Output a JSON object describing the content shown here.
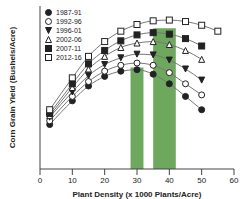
{
  "chart_data": {
    "type": "line",
    "xlabel": "Plant Density (x 1000 Plants/Acre)",
    "ylabel": "Corn Grain Yield (Bushels/Acre)",
    "x": [
      3,
      10,
      15,
      20,
      25,
      30,
      35,
      40,
      45,
      50,
      55
    ],
    "series": [
      {
        "name": "1987-91",
        "color": "#222222",
        "marker": "circle",
        "values": [
          60,
          92,
          112,
          125,
          132,
          134,
          128,
          115,
          98,
          80,
          null
        ]
      },
      {
        "name": "1992-96",
        "color": "#222222",
        "marker": "circle_open",
        "values": [
          65,
          98,
          118,
          132,
          140,
          143,
          140,
          130,
          115,
          100,
          null
        ]
      },
      {
        "name": "1996-01",
        "color": "#222222",
        "marker": "triangle_down",
        "values": [
          70,
          104,
          126,
          141,
          150,
          155,
          154,
          147,
          135,
          120,
          null
        ]
      },
      {
        "name": "2002-06",
        "color": "#222222",
        "marker": "triangle_open",
        "values": [
          72,
          110,
          135,
          152,
          164,
          170,
          172,
          168,
          160,
          148,
          null
        ]
      },
      {
        "name": "2007-11",
        "color": "#222222",
        "marker": "square",
        "values": [
          75,
          115,
          142,
          160,
          173,
          181,
          184,
          182,
          176,
          166,
          null
        ]
      },
      {
        "name": "2012-16",
        "color": "#222222",
        "marker": "square_open",
        "values": [
          80,
          123,
          152,
          172,
          186,
          195,
          200,
          201,
          199,
          194,
          186
        ]
      }
    ],
    "bands": [
      {
        "x0": 28,
        "x1": 32,
        "value": 137,
        "color": "#5e9e4c"
      },
      {
        "x0": 35,
        "x1": 42,
        "value": 190,
        "color": "#5e9e4c"
      }
    ],
    "xlim": [
      0,
      60
    ],
    "xticks": [
      0,
      10,
      20,
      30,
      40,
      50,
      60
    ],
    "ylim": [
      0,
      220
    ],
    "tick_labels": "x",
    "legend": "upper left"
  }
}
